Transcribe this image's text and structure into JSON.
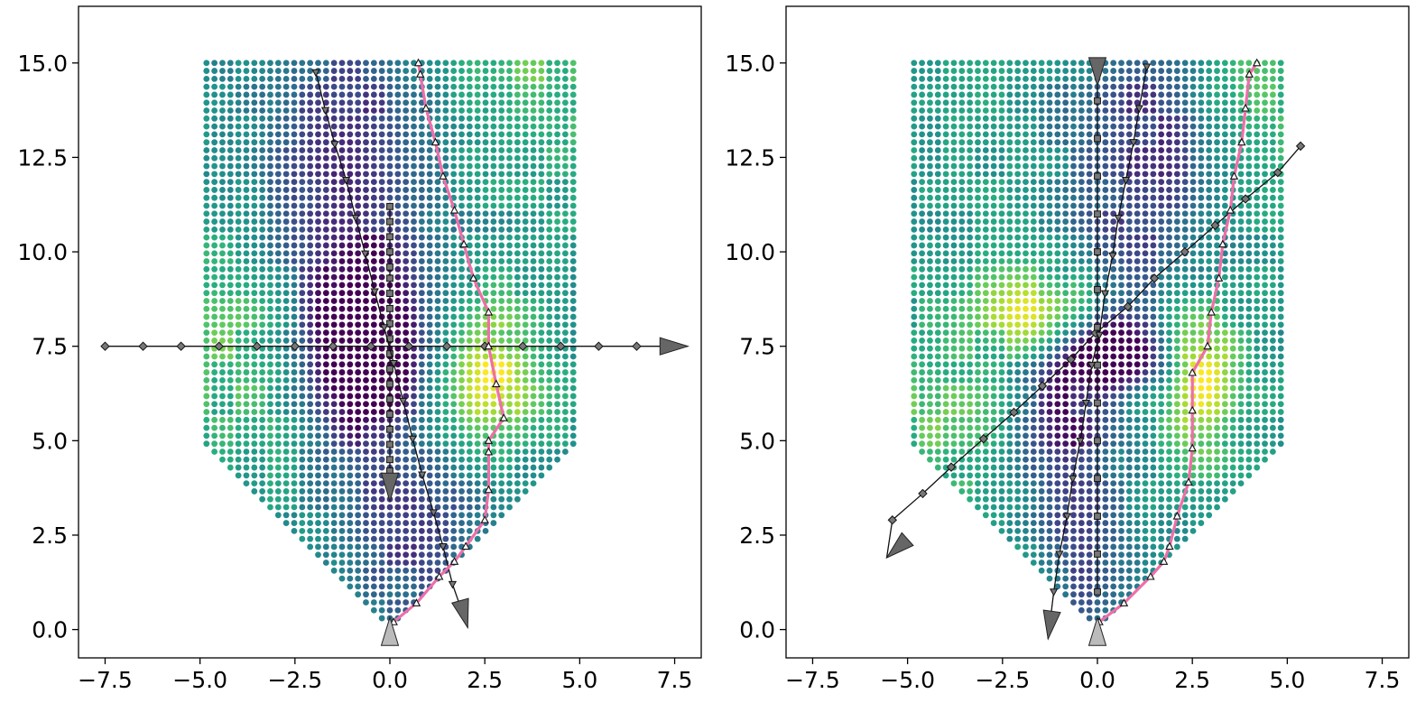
{
  "chart_data": [
    {
      "type": "scatter",
      "title": "",
      "xlabel": "",
      "ylabel": "",
      "xlim": [
        -8.2,
        8.2
      ],
      "ylim": [
        -0.75,
        16.5
      ],
      "x_ticks": [
        -7.5,
        -5.0,
        -2.5,
        0.0,
        2.5,
        5.0,
        7.5
      ],
      "x_tick_labels": [
        "−7.5",
        "−5.0",
        "−2.5",
        "0.0",
        "2.5",
        "5.0",
        "7.5"
      ],
      "y_ticks": [
        0.0,
        2.5,
        5.0,
        7.5,
        10.0,
        12.5,
        15.0
      ],
      "y_tick_labels": [
        "0.0",
        "2.5",
        "5.0",
        "7.5",
        "10.0",
        "12.5",
        "15.0"
      ],
      "grid": false,
      "colormap": "viridis",
      "point_field": {
        "region": "rectangle x in [-5, 5], y in [5, 15], tapering linearly to the point (0, 0)",
        "spacing": 0.21,
        "value_range": [
          0,
          1
        ],
        "low_value_centers": [
          {
            "x": -0.7,
            "y": 7.2,
            "strength": 0.85,
            "sx": 1.0,
            "sy": 1.6
          },
          {
            "x": -1.2,
            "y": 12.0,
            "strength": 0.45,
            "sx": 1.6,
            "sy": 3.0
          },
          {
            "x": 0.5,
            "y": 2.5,
            "strength": 0.35,
            "sx": 1.5,
            "sy": 1.6
          }
        ],
        "high_value_centers": [
          {
            "x": 2.6,
            "y": 6.6,
            "strength": 0.45,
            "sx": 0.8,
            "sy": 1.3
          },
          {
            "x": -4.0,
            "y": 7.5,
            "strength": 0.2,
            "sx": 1.4,
            "sy": 2.0
          },
          {
            "x": 3.8,
            "y": 14.5,
            "strength": 0.18,
            "sx": 1.3,
            "sy": 1.5
          }
        ],
        "base_value": 0.55
      },
      "trajectories": [
        {
          "marker": "diamond",
          "points": [
            [
              -7.5,
              7.5
            ],
            [
              -6.5,
              7.5
            ],
            [
              -5.5,
              7.5
            ],
            [
              -4.5,
              7.5
            ],
            [
              -3.5,
              7.5
            ],
            [
              -2.5,
              7.5
            ],
            [
              -1.5,
              7.5
            ],
            [
              -0.5,
              7.5
            ],
            [
              0.5,
              7.5
            ],
            [
              1.5,
              7.5
            ],
            [
              2.5,
              7.5
            ],
            [
              3.5,
              7.5
            ],
            [
              4.5,
              7.5
            ],
            [
              5.5,
              7.5
            ],
            [
              6.5,
              7.5
            ]
          ],
          "arrow": {
            "tip": [
              7.85,
              7.5
            ],
            "direction": [
              1,
              0
            ],
            "fill": "#666666"
          }
        },
        {
          "marker": "square",
          "points": [
            [
              0,
              11.2
            ],
            [
              0,
              10.8
            ],
            [
              0,
              10.4
            ],
            [
              0,
              10.0
            ],
            [
              0,
              9.6
            ],
            [
              0,
              9.3
            ],
            [
              0,
              8.9
            ],
            [
              0,
              8.5
            ],
            [
              0,
              8.1
            ],
            [
              0,
              7.7
            ],
            [
              0,
              7.3
            ],
            [
              0,
              6.9
            ],
            [
              0,
              6.5
            ],
            [
              0,
              6.1
            ],
            [
              0,
              5.7
            ],
            [
              0,
              5.3
            ],
            [
              0,
              4.9
            ],
            [
              0,
              4.5
            ],
            [
              0,
              4.2
            ]
          ],
          "arrow": {
            "tip": [
              0,
              3.4
            ],
            "direction": [
              0,
              -1
            ],
            "fill": "#666666"
          }
        },
        {
          "marker": "triangle-down",
          "points": [
            [
              -1.95,
              14.75
            ],
            [
              -1.7,
              13.75
            ],
            [
              -1.45,
              12.85
            ],
            [
              -1.15,
              11.9
            ],
            [
              -0.9,
              10.9
            ],
            [
              -0.65,
              9.95
            ],
            [
              -0.4,
              8.95
            ],
            [
              -0.15,
              8.0
            ],
            [
              0.1,
              7.05
            ],
            [
              0.35,
              6.05
            ],
            [
              0.6,
              5.05
            ],
            [
              0.85,
              4.1
            ],
            [
              1.15,
              3.1
            ],
            [
              1.4,
              2.2
            ],
            [
              1.65,
              1.2
            ]
          ],
          "arrow": {
            "tip": [
              2.05,
              0.05
            ],
            "direction": [
              0.28,
              -1
            ],
            "fill": "#666666"
          }
        },
        {
          "marker": "triangle-up",
          "line_color": "#ee6fa8",
          "points": [
            [
              0.1,
              0.2
            ],
            [
              0.7,
              0.7
            ],
            [
              1.3,
              1.4
            ],
            [
              1.7,
              1.8
            ],
            [
              2.0,
              2.2
            ],
            [
              2.5,
              2.9
            ],
            [
              2.6,
              3.7
            ],
            [
              2.6,
              4.7
            ],
            [
              2.6,
              5.0
            ],
            [
              3.0,
              5.6
            ],
            [
              2.8,
              6.5
            ],
            [
              2.6,
              7.5
            ],
            [
              2.6,
              8.4
            ],
            [
              2.2,
              9.3
            ],
            [
              1.95,
              10.2
            ],
            [
              1.7,
              11.1
            ],
            [
              1.4,
              12.0
            ],
            [
              1.2,
              12.9
            ],
            [
              0.95,
              13.8
            ],
            [
              0.8,
              14.7
            ],
            [
              0.75,
              15.0
            ]
          ],
          "arrow": {
            "tip": [
              0,
              0.32
            ],
            "direction": [
              0,
              1
            ],
            "fill": "#bbbbbb"
          }
        }
      ]
    },
    {
      "type": "scatter",
      "title": "",
      "xlabel": "",
      "ylabel": "",
      "xlim": [
        -8.2,
        8.2
      ],
      "ylim": [
        -0.75,
        16.5
      ],
      "x_ticks": [
        -7.5,
        -5.0,
        -2.5,
        0.0,
        2.5,
        5.0,
        7.5
      ],
      "x_tick_labels": [
        "−7.5",
        "−5.0",
        "−2.5",
        "0.0",
        "2.5",
        "5.0",
        "7.5"
      ],
      "y_ticks": [
        0.0,
        2.5,
        5.0,
        7.5,
        10.0,
        12.5,
        15.0
      ],
      "y_tick_labels": [
        "0.0",
        "2.5",
        "5.0",
        "7.5",
        "10.0",
        "12.5",
        "15.0"
      ],
      "grid": false,
      "colormap": "viridis",
      "point_field": {
        "region": "rectangle x in [-5, 5], y in [5, 15], tapering linearly to the point (0, 0)",
        "spacing": 0.21,
        "value_range": [
          0,
          1
        ],
        "low_value_centers": [
          {
            "x": 0.4,
            "y": 7.3,
            "strength": 0.9,
            "sx": 0.9,
            "sy": 0.6
          },
          {
            "x": -0.9,
            "y": 5.5,
            "strength": 0.45,
            "sx": 0.8,
            "sy": 1.6
          },
          {
            "x": 1.2,
            "y": 12.5,
            "strength": 0.4,
            "sx": 1.4,
            "sy": 3.0
          },
          {
            "x": -0.2,
            "y": 2.0,
            "strength": 0.3,
            "sx": 0.9,
            "sy": 1.6
          }
        ],
        "high_value_centers": [
          {
            "x": 2.7,
            "y": 6.8,
            "strength": 0.5,
            "sx": 0.7,
            "sy": 1.4
          },
          {
            "x": -1.5,
            "y": 8.3,
            "strength": 0.45,
            "sx": 1.2,
            "sy": 0.8
          },
          {
            "x": 4.0,
            "y": 14.5,
            "strength": 0.25,
            "sx": 0.9,
            "sy": 1.5
          },
          {
            "x": -4.0,
            "y": 5.5,
            "strength": 0.2,
            "sx": 1.2,
            "sy": 1.2
          }
        ],
        "base_value": 0.55
      },
      "trajectories": [
        {
          "marker": "diamond",
          "points": [
            [
              5.35,
              12.8
            ],
            [
              4.75,
              12.1
            ],
            [
              3.9,
              11.4
            ],
            [
              3.1,
              10.7
            ],
            [
              2.3,
              10.0
            ],
            [
              1.5,
              9.3
            ],
            [
              0.8,
              8.55
            ],
            [
              -0.05,
              7.85
            ],
            [
              -0.7,
              7.15
            ],
            [
              -1.45,
              6.45
            ],
            [
              -2.2,
              5.75
            ],
            [
              -3.0,
              5.05
            ],
            [
              -3.85,
              4.3
            ],
            [
              -4.6,
              3.6
            ],
            [
              -5.4,
              2.9
            ]
          ],
          "arrow": {
            "tip": [
              -5.55,
              1.9
            ],
            "direction": [
              -0.75,
              -0.67
            ],
            "fill": "#666666"
          }
        },
        {
          "marker": "square",
          "points": [
            [
              0,
              14.0
            ],
            [
              0,
              13.0
            ],
            [
              0,
              12.0
            ],
            [
              0,
              11.0
            ],
            [
              0,
              10.0
            ],
            [
              0,
              9.0
            ],
            [
              0,
              8.0
            ],
            [
              0,
              7.0
            ],
            [
              0,
              6.0
            ],
            [
              0,
              5.0
            ],
            [
              0,
              4.0
            ],
            [
              0,
              3.0
            ],
            [
              0,
              2.0
            ],
            [
              0,
              1.0
            ]
          ],
          "arrow": {
            "tip": [
              0,
              14.4
            ],
            "direction": [
              0,
              -1
            ],
            "fill": "#666666"
          }
        },
        {
          "marker": "triangle-down",
          "points": [
            [
              1.3,
              14.9
            ],
            [
              1.1,
              13.8
            ],
            [
              0.95,
              12.9
            ],
            [
              0.75,
              11.9
            ],
            [
              0.55,
              10.9
            ],
            [
              0.4,
              9.9
            ],
            [
              0.2,
              8.9
            ],
            [
              0.05,
              7.8
            ],
            [
              -0.15,
              7.0
            ],
            [
              -0.3,
              6.0
            ],
            [
              -0.45,
              5.0
            ],
            [
              -0.65,
              4.0
            ],
            [
              -0.8,
              3.0
            ],
            [
              -1.0,
              2.0
            ],
            [
              -1.15,
              1.0
            ]
          ],
          "arrow": {
            "tip": [
              -1.3,
              -0.25
            ],
            "direction": [
              -0.14,
              -1
            ],
            "fill": "#666666"
          }
        },
        {
          "marker": "triangle-up",
          "line_color": "#ee6fa8",
          "points": [
            [
              0.05,
              0.2
            ],
            [
              0.7,
              0.7
            ],
            [
              1.4,
              1.4
            ],
            [
              1.75,
              1.8
            ],
            [
              1.9,
              2.2
            ],
            [
              2.1,
              3.0
            ],
            [
              2.4,
              3.9
            ],
            [
              2.5,
              4.8
            ],
            [
              2.5,
              5.8
            ],
            [
              2.5,
              6.8
            ],
            [
              2.9,
              7.5
            ],
            [
              3.0,
              8.4
            ],
            [
              3.2,
              9.3
            ],
            [
              3.3,
              10.2
            ],
            [
              3.5,
              11.1
            ],
            [
              3.6,
              12.0
            ],
            [
              3.8,
              12.9
            ],
            [
              3.9,
              13.8
            ],
            [
              4.0,
              14.7
            ],
            [
              4.2,
              15.0
            ]
          ],
          "arrow": {
            "tip": [
              0,
              0.32
            ],
            "direction": [
              0,
              1
            ],
            "fill": "#bbbbbb"
          }
        }
      ]
    }
  ]
}
